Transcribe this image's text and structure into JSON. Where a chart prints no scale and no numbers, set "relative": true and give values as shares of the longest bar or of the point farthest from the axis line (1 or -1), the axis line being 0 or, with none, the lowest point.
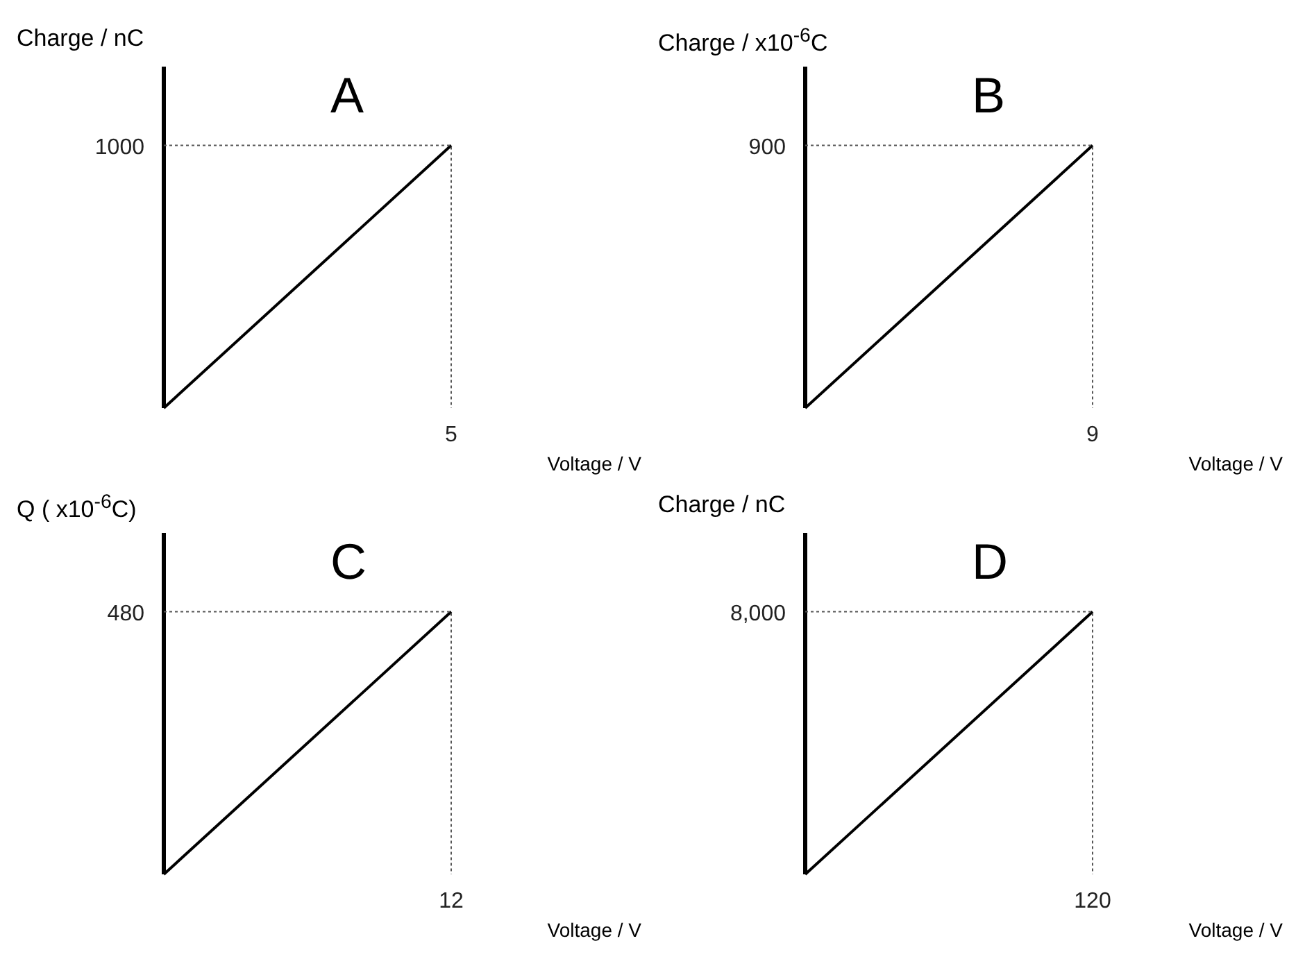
{
  "chart_data": [
    {
      "type": "line",
      "title": "A",
      "ylabel": "Charge / nC",
      "xlabel": "Voltage / V",
      "relative": true,
      "categories": [
        null,
        null
      ],
      "series": [
        {
          "color": "#000000",
          "values": [
            0,
            1
          ]
        }
      ],
      "annotations": [
        "5",
        "1000"
      ],
      "grid": false,
      "legend": false,
      "marker": "none",
      "line_style": "solid"
    },
    {
      "type": "line",
      "title": "B",
      "ylabel": "Charge / x10$^{-6}$C",
      "xlabel": "Voltage / V",
      "relative": true,
      "categories": [
        null,
        null
      ],
      "series": [
        {
          "color": "#000000",
          "values": [
            0,
            1
          ]
        }
      ],
      "annotations": [
        "9",
        "900"
      ],
      "grid": false,
      "legend": false,
      "marker": "none",
      "line_style": "solid"
    },
    {
      "type": "line",
      "title": "C",
      "ylabel": "Q ( x10$^{-6}$C)",
      "xlabel": "Voltage / V",
      "relative": true,
      "categories": [
        null,
        null
      ],
      "series": [
        {
          "color": "#000000",
          "values": [
            0,
            1
          ]
        }
      ],
      "annotations": [
        "12",
        "480"
      ],
      "grid": false,
      "legend": false,
      "marker": "none",
      "line_style": "solid"
    },
    {
      "type": "line",
      "title": "D",
      "ylabel": "Charge / nC",
      "xlabel": "Voltage / V",
      "relative": true,
      "categories": [
        null,
        null
      ],
      "series": [
        {
          "color": "#000000",
          "values": [
            0,
            1
          ]
        }
      ],
      "annotations": [
        "120",
        "8,000"
      ],
      "grid": false,
      "legend": false,
      "marker": "none",
      "line_style": "solid"
    }
  ]
}
